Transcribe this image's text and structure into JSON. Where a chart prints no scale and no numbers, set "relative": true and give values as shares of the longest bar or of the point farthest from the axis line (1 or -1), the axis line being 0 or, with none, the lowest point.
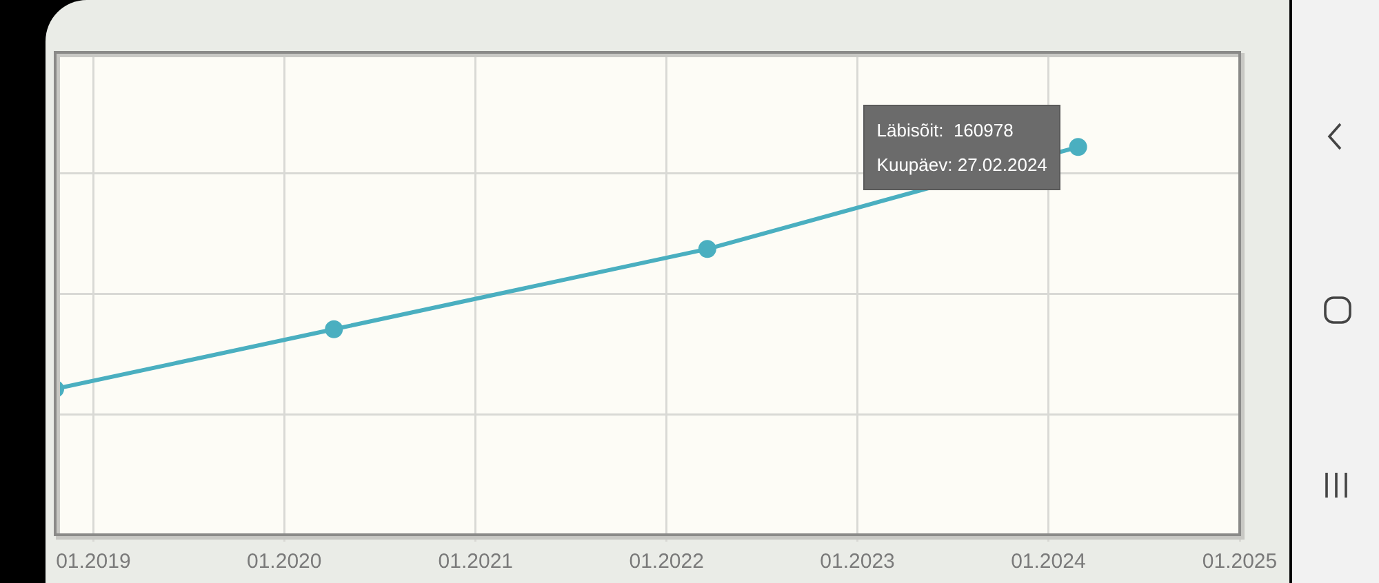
{
  "chart_data": {
    "type": "line",
    "relative": true,
    "x": [
      "2018-10-20",
      "2020-04-05",
      "2022-03-20",
      "2024-02-27"
    ],
    "series": [
      {
        "color": "#4aafc0",
        "values": [
          0.376,
          0.53,
          0.737,
          1
        ]
      }
    ],
    "xlim": [
      "2018-10-20",
      "2025-01"
    ],
    "xticks": [
      {
        "value": "2019-01",
        "label": "01.2019"
      },
      {
        "value": "2020-01",
        "label": "01.2020"
      },
      {
        "value": "2021-01",
        "label": "01.2021"
      },
      {
        "value": "2022-01",
        "label": "01.2022"
      },
      {
        "value": "2023-01",
        "label": "01.2023"
      },
      {
        "value": "2024-01",
        "label": "01.2024"
      },
      {
        "value": "2025-01",
        "label": "01.2025"
      }
    ],
    "annotations": [
      {
        "text": "Läbisõit:  160978\nKuupäev: 27.02.2024",
        "x": "2024-02-27",
        "y": 1
      }
    ],
    "grid": true,
    "marker": "circle",
    "line_style": "solid",
    "tick_labels": "x",
    "legend": false
  }
}
